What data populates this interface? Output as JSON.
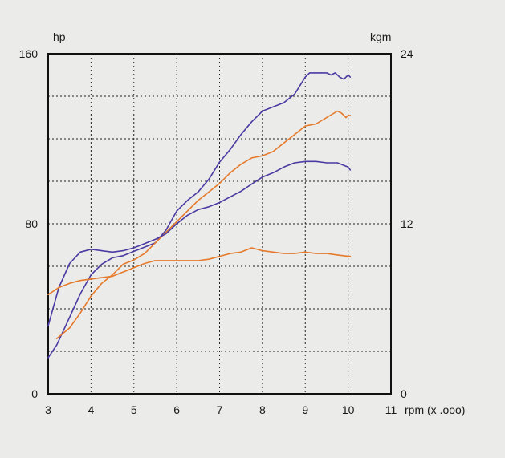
{
  "chart_data": {
    "type": "line",
    "left_axis": {
      "unit": "hp",
      "ticks": [
        "0",
        "80",
        "160"
      ],
      "tick_values": [
        0,
        80,
        160
      ],
      "range": [
        0,
        160
      ]
    },
    "right_axis": {
      "unit": "kgm",
      "ticks": [
        "0",
        "12",
        "24"
      ],
      "tick_values": [
        0,
        12,
        24
      ],
      "range": [
        0,
        24
      ]
    },
    "x_axis": {
      "unit": "rpm (x .ooo)",
      "ticks": [
        "3",
        "4",
        "5",
        "6",
        "7",
        "8",
        "9",
        "10",
        "11"
      ],
      "tick_values": [
        3,
        4,
        5,
        6,
        7,
        8,
        9,
        10,
        11
      ],
      "range": [
        3,
        11
      ]
    },
    "grid": true,
    "series": [
      {
        "color": "#4b3aa2",
        "axis": "left",
        "x": [
          3,
          3.2,
          3.5,
          3.75,
          4,
          4.25,
          4.5,
          4.75,
          5,
          5.25,
          5.5,
          5.75,
          6,
          6.25,
          6.5,
          6.75,
          7,
          7.25,
          7.5,
          7.75,
          8,
          8.25,
          8.5,
          8.75,
          9,
          9.1,
          9.25,
          9.5,
          9.6,
          9.7,
          9.8,
          9.9,
          10,
          10.05
        ],
        "y": [
          17,
          23,
          36,
          47,
          56,
          61,
          64,
          65,
          67,
          69,
          71,
          77,
          86,
          91,
          95,
          101,
          109,
          115,
          122,
          128,
          133,
          135,
          137,
          141,
          149,
          151,
          151,
          151,
          150,
          151,
          149,
          148,
          150,
          149
        ]
      },
      {
        "color": "#e57a2b",
        "axis": "left",
        "x": [
          3.2,
          3.5,
          3.75,
          4,
          4.25,
          4.5,
          4.75,
          5,
          5.25,
          5.5,
          5.75,
          6,
          6.25,
          6.5,
          6.75,
          7,
          7.25,
          7.5,
          7.75,
          8,
          8.25,
          8.5,
          8.75,
          9,
          9.25,
          9.5,
          9.75,
          9.85,
          9.95,
          10,
          10.05
        ],
        "y": [
          26,
          31,
          38,
          46,
          52,
          56,
          61,
          63,
          66,
          71,
          76,
          81,
          86,
          91,
          95,
          99,
          104,
          108,
          111,
          112,
          114,
          118,
          122,
          126,
          127,
          130,
          133,
          132,
          130,
          131,
          131
        ]
      },
      {
        "color": "#4b3aa2",
        "axis": "right",
        "x": [
          3,
          3.25,
          3.5,
          3.75,
          4,
          4.25,
          4.5,
          4.75,
          5,
          5.25,
          5.5,
          5.75,
          6,
          6.25,
          6.5,
          6.75,
          7,
          7.25,
          7.5,
          7.75,
          8,
          8.25,
          8.5,
          8.75,
          9,
          9.25,
          9.5,
          9.75,
          10,
          10.05
        ],
        "y": [
          4.8,
          7.5,
          9.2,
          10.0,
          10.2,
          10.1,
          10.0,
          10.1,
          10.3,
          10.6,
          10.9,
          11.3,
          12.0,
          12.6,
          13.0,
          13.2,
          13.5,
          13.9,
          14.3,
          14.8,
          15.3,
          15.6,
          16.0,
          16.3,
          16.4,
          16.4,
          16.3,
          16.3,
          16.0,
          15.8
        ]
      },
      {
        "color": "#e57a2b",
        "axis": "right",
        "x": [
          3,
          3.25,
          3.5,
          3.75,
          4,
          4.25,
          4.5,
          4.75,
          5,
          5.25,
          5.5,
          5.75,
          6,
          6.25,
          6.5,
          6.75,
          7,
          7.25,
          7.5,
          7.75,
          8,
          8.25,
          8.5,
          8.75,
          9,
          9.25,
          9.5,
          9.75,
          10,
          10.05
        ],
        "y": [
          7.0,
          7.5,
          7.8,
          8.0,
          8.1,
          8.2,
          8.3,
          8.6,
          8.9,
          9.2,
          9.4,
          9.4,
          9.4,
          9.4,
          9.4,
          9.5,
          9.7,
          9.9,
          10.0,
          10.3,
          10.1,
          10.0,
          9.9,
          9.9,
          10.0,
          9.9,
          9.9,
          9.8,
          9.7,
          9.7
        ]
      }
    ]
  }
}
